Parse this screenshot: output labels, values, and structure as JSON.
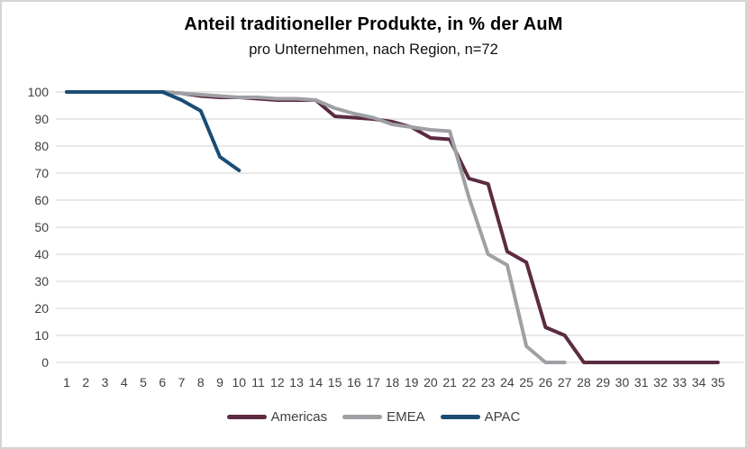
{
  "title": "Anteil traditioneller Produkte, in % der AuM",
  "subtitle": "pro Unternehmen, nach Region, n=72",
  "frame": {
    "background": "#FFFFFF",
    "border_color": "#D4D4D4",
    "gridline_color": "#D9D9D9",
    "tick_label_color": "#404040"
  },
  "chart_data": {
    "type": "line",
    "title": "Anteil traditioneller Produkte, in % der AuM",
    "subtitle": "pro Unternehmen, nach Region, n=72",
    "xlabel": "",
    "ylabel": "",
    "ylim": [
      0,
      100
    ],
    "yticks": [
      0,
      10,
      20,
      30,
      40,
      50,
      60,
      70,
      80,
      90,
      100
    ],
    "categories": [
      1,
      2,
      3,
      4,
      5,
      6,
      7,
      8,
      9,
      10,
      11,
      12,
      13,
      14,
      15,
      16,
      17,
      18,
      19,
      20,
      21,
      22,
      23,
      24,
      25,
      26,
      27,
      28,
      29,
      30,
      31,
      32,
      33,
      34,
      35
    ],
    "grid": "horizontal",
    "legend_position": "bottom",
    "series": [
      {
        "name": "Americas",
        "color": "#5B2B42",
        "values": [
          100,
          100,
          100,
          100,
          100,
          100,
          99.5,
          98.5,
          98,
          98,
          97.5,
          97,
          97,
          97,
          91,
          90.5,
          90,
          89,
          87,
          83,
          82.5,
          68,
          66,
          41,
          37,
          13,
          10,
          0,
          0,
          0,
          0,
          0,
          0,
          0,
          0
        ]
      },
      {
        "name": "EMEA",
        "color": "#9EA0A4",
        "values": [
          100,
          100,
          100,
          100,
          100,
          100,
          99.5,
          99,
          98.5,
          98,
          98,
          97.5,
          97.5,
          97,
          94,
          92,
          90.5,
          88,
          87,
          86,
          85.5,
          61,
          40,
          36,
          6,
          0,
          0
        ]
      },
      {
        "name": "APAC",
        "color": "#1B4D74",
        "values": [
          100,
          100,
          100,
          100,
          100,
          100,
          97,
          93,
          76,
          71
        ]
      }
    ]
  }
}
